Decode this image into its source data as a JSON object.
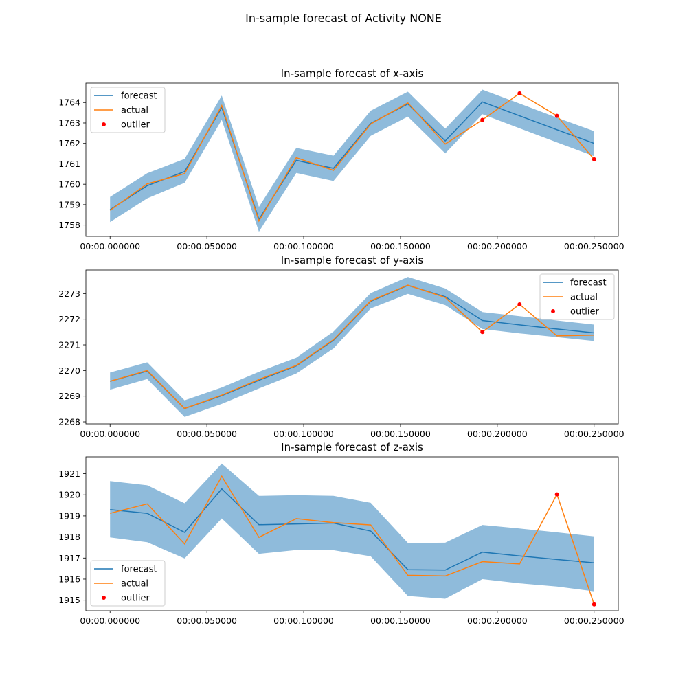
{
  "suptitle": "In-sample forecast of Activity NONE",
  "colors": {
    "forecast": "#1f77b4",
    "actual": "#ff7f0e",
    "outlier": "#ff0000",
    "band": "#8fbbdb"
  },
  "chart_data": [
    {
      "type": "line",
      "title": "In-sample forecast of x-axis",
      "legend_position": "upper-left",
      "legend": [
        "forecast",
        "actual",
        "outlier"
      ],
      "x_labels": [
        "00:00.000000",
        "00:00.050000",
        "00:00.100000",
        "00:00.150000",
        "00:00.200000",
        "00:00.250000"
      ],
      "x_ticks": [
        0,
        0.05,
        0.1,
        0.15,
        0.2,
        0.25
      ],
      "y_ticks": [
        1758,
        1759,
        1760,
        1761,
        1762,
        1763,
        1764
      ],
      "xlim": [
        -0.0125,
        0.2625
      ],
      "ylim": [
        1757.45,
        1764.95
      ],
      "x": [
        0,
        0.0192,
        0.0385,
        0.0577,
        0.0769,
        0.0962,
        0.1154,
        0.1346,
        0.1538,
        0.1731,
        0.1923,
        0.2115,
        0.2308,
        0.25
      ],
      "forecast": [
        1758.75,
        1759.93,
        1760.62,
        1763.76,
        1758.28,
        1761.17,
        1760.78,
        1762.98,
        1763.93,
        1762.12,
        1764.03,
        1763.35,
        1762.67,
        1762.0
      ],
      "lower": [
        1758.15,
        1759.31,
        1760.07,
        1763.15,
        1757.68,
        1760.55,
        1760.16,
        1762.37,
        1763.31,
        1761.51,
        1763.43,
        1762.74,
        1762.05,
        1761.37
      ],
      "upper": [
        1759.38,
        1760.54,
        1761.24,
        1764.34,
        1758.89,
        1761.78,
        1761.4,
        1763.6,
        1764.53,
        1762.72,
        1764.63,
        1763.95,
        1763.26,
        1762.6
      ],
      "actual": [
        1758.72,
        1760.02,
        1760.52,
        1763.85,
        1758.2,
        1761.3,
        1760.68,
        1762.95,
        1763.98,
        1761.97,
        1763.15,
        1764.45,
        1763.35,
        1761.22
      ],
      "outliers": [
        [
          0.1923,
          1763.15
        ],
        [
          0.2115,
          1764.45
        ],
        [
          0.2308,
          1763.35
        ],
        [
          0.25,
          1761.22
        ]
      ]
    },
    {
      "type": "line",
      "title": "In-sample forecast of y-axis",
      "legend_position": "upper-right",
      "legend": [
        "forecast",
        "actual",
        "outlier"
      ],
      "x_labels": [
        "00:00.000000",
        "00:00.050000",
        "00:00.100000",
        "00:00.150000",
        "00:00.200000",
        "00:00.250000"
      ],
      "x_ticks": [
        0,
        0.05,
        0.1,
        0.15,
        0.2,
        0.25
      ],
      "y_ticks": [
        2268,
        2269,
        2270,
        2271,
        2272,
        2273
      ],
      "xlim": [
        -0.0125,
        0.2625
      ],
      "ylim": [
        2267.92,
        2273.92
      ],
      "x": [
        0,
        0.0192,
        0.0385,
        0.0577,
        0.0769,
        0.0962,
        0.1154,
        0.1346,
        0.1538,
        0.1731,
        0.1923,
        0.2115,
        0.2308,
        0.25
      ],
      "forecast": [
        2269.58,
        2269.98,
        2268.52,
        2269.02,
        2269.62,
        2270.18,
        2271.18,
        2272.7,
        2273.32,
        2272.88,
        2271.95,
        2271.78,
        2271.62,
        2271.47
      ],
      "lower": [
        2269.25,
        2269.67,
        2268.19,
        2268.7,
        2269.3,
        2269.88,
        2270.86,
        2272.42,
        2272.99,
        2272.55,
        2271.62,
        2271.45,
        2271.3,
        2271.15
      ],
      "upper": [
        2269.92,
        2270.32,
        2268.84,
        2269.34,
        2269.95,
        2270.5,
        2271.52,
        2273.02,
        2273.65,
        2273.2,
        2272.28,
        2272.12,
        2271.95,
        2271.79
      ],
      "actual": [
        2269.58,
        2270.0,
        2268.52,
        2269.04,
        2269.65,
        2270.2,
        2271.2,
        2272.72,
        2273.33,
        2272.85,
        2271.5,
        2272.58,
        2271.35,
        2271.38
      ],
      "outliers": [
        [
          0.1923,
          2271.5
        ],
        [
          0.2115,
          2272.58
        ]
      ]
    },
    {
      "type": "line",
      "title": "In-sample forecast of z-axis",
      "legend_position": "lower-left",
      "legend": [
        "forecast",
        "actual",
        "outlier"
      ],
      "x_labels": [
        "00:00.000000",
        "00:00.050000",
        "00:00.100000",
        "00:00.150000",
        "00:00.200000",
        "00:00.250000"
      ],
      "x_ticks": [
        0,
        0.05,
        0.1,
        0.15,
        0.2,
        0.25
      ],
      "y_ticks": [
        1915,
        1916,
        1917,
        1918,
        1919,
        1920,
        1921
      ],
      "xlim": [
        -0.0125,
        0.2625
      ],
      "ylim": [
        1914.5,
        1921.8
      ],
      "x": [
        0,
        0.0192,
        0.0385,
        0.0577,
        0.0769,
        0.0962,
        0.1154,
        0.1346,
        0.1538,
        0.1731,
        0.1923,
        0.2115,
        0.2308,
        0.25
      ],
      "forecast": [
        1919.3,
        1919.12,
        1918.22,
        1920.28,
        1918.58,
        1918.62,
        1918.66,
        1918.28,
        1916.45,
        1916.43,
        1917.28,
        1917.1,
        1916.93,
        1916.77
      ],
      "lower": [
        1917.98,
        1917.75,
        1916.98,
        1918.88,
        1917.2,
        1917.38,
        1917.37,
        1917.08,
        1915.2,
        1915.07,
        1916.0,
        1915.8,
        1915.65,
        1915.42
      ],
      "upper": [
        1920.65,
        1920.45,
        1919.6,
        1921.48,
        1919.95,
        1919.98,
        1919.95,
        1919.62,
        1917.72,
        1917.73,
        1918.57,
        1918.4,
        1918.22,
        1918.03
      ],
      "actual": [
        1919.12,
        1919.57,
        1917.67,
        1920.88,
        1917.98,
        1918.87,
        1918.68,
        1918.57,
        1916.18,
        1916.15,
        1916.83,
        1916.72,
        1920.02,
        1914.8
      ],
      "outliers": [
        [
          0.2308,
          1920.02
        ],
        [
          0.25,
          1914.8
        ]
      ]
    }
  ]
}
